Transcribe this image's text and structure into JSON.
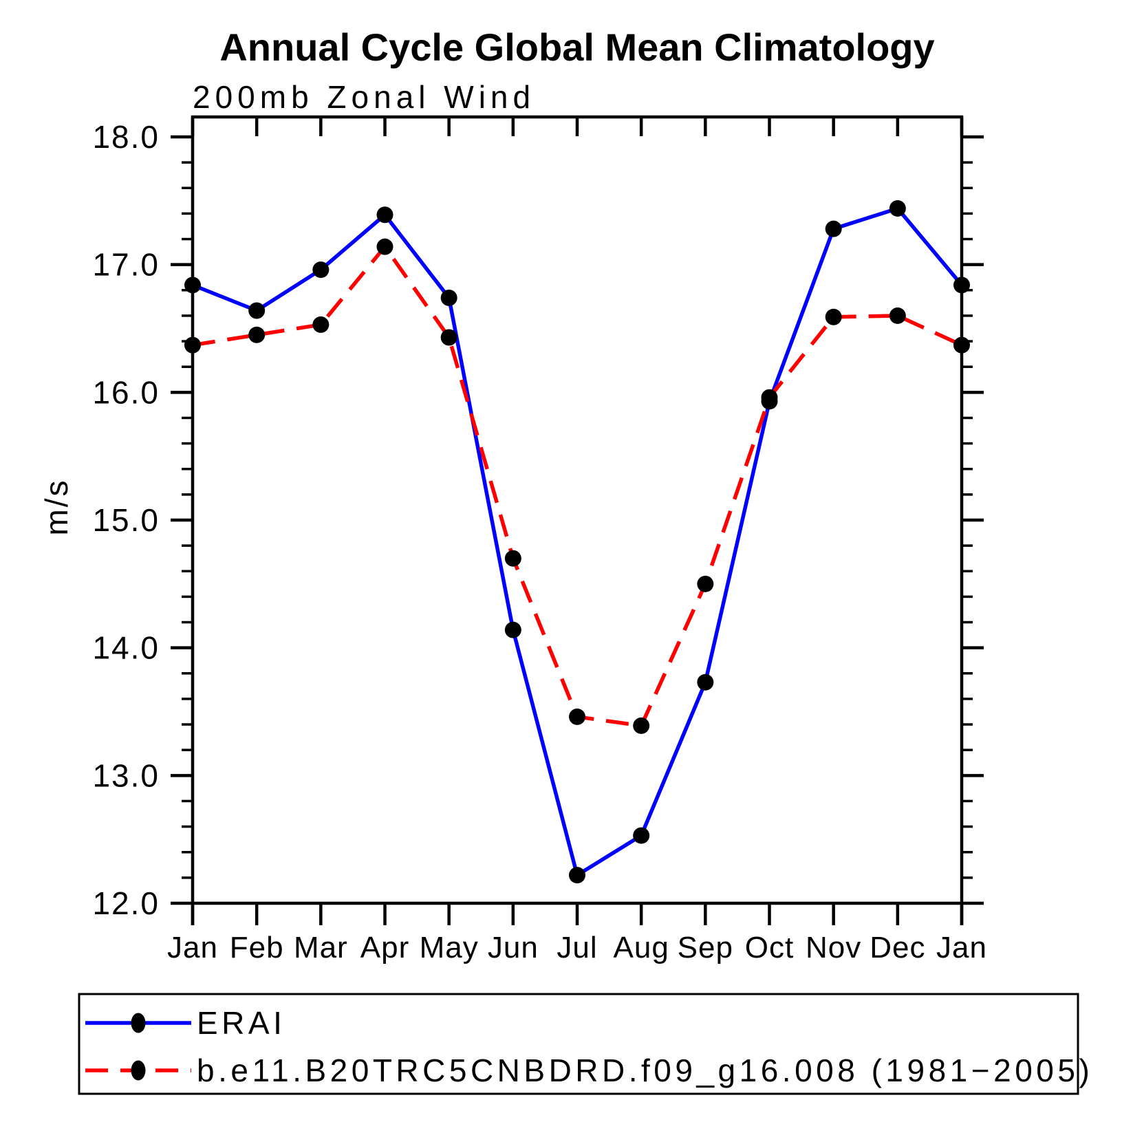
{
  "window": {
    "background_color": "#ffffff",
    "frame_color": "#000000"
  },
  "chart_data": {
    "type": "line",
    "title": "Annual Cycle Global Mean Climatology",
    "subtitle": "200mb Zonal Wind",
    "xlabel": "",
    "ylabel": "m/s",
    "categories": [
      "Jan",
      "Feb",
      "Mar",
      "Apr",
      "May",
      "Jun",
      "Jul",
      "Aug",
      "Sep",
      "Oct",
      "Nov",
      "Dec",
      "Jan"
    ],
    "ylim": [
      12.0,
      18.0
    ],
    "ytick_major_interval": 1.0,
    "ytick_minor_interval": 0.2,
    "ytick_labels": [
      "12.0",
      "13.0",
      "14.0",
      "15.0",
      "16.0",
      "17.0",
      "18.0"
    ],
    "grid": false,
    "legend_position": "bottom",
    "series": [
      {
        "name": "ERAI",
        "color": "#0000ff",
        "line_style": "solid",
        "marker": "filled-circle",
        "marker_color": "#000000",
        "values": [
          16.84,
          16.64,
          16.96,
          17.39,
          16.74,
          14.14,
          12.22,
          12.53,
          13.73,
          15.93,
          17.28,
          17.44,
          16.84
        ]
      },
      {
        "name": "b.e11.B20TRC5CNBDRD.f09_g16.008 (1981−2005)",
        "color": "#ff0000",
        "line_style": "dashed",
        "marker": "filled-circle",
        "marker_color": "#000000",
        "values": [
          16.37,
          16.45,
          16.53,
          17.14,
          16.43,
          14.7,
          13.46,
          13.39,
          14.5,
          15.96,
          16.59,
          16.6,
          16.37
        ]
      }
    ]
  }
}
